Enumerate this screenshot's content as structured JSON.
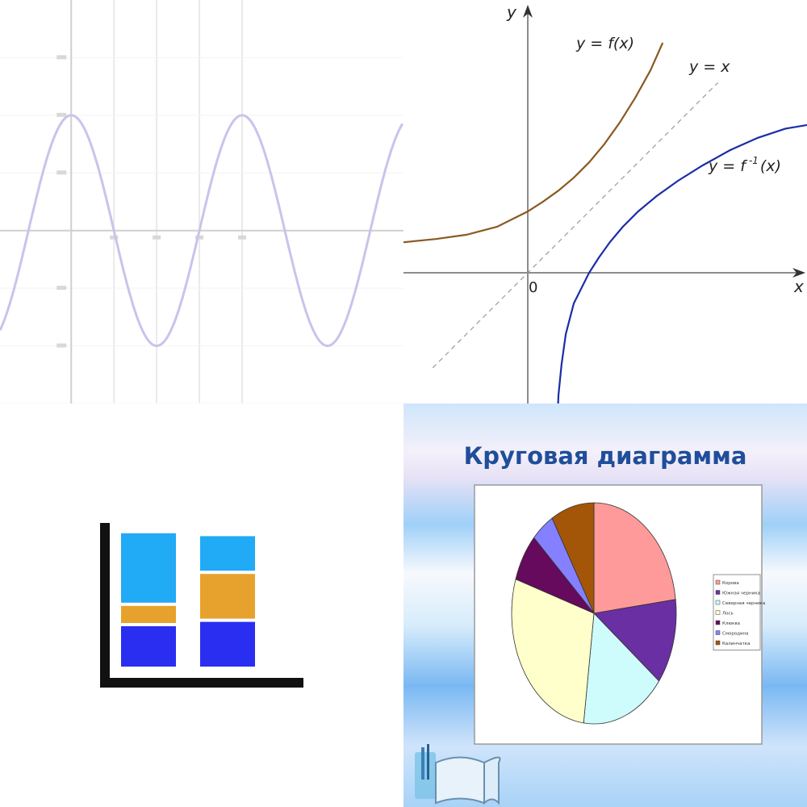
{
  "chart_data": [
    {
      "type": "line",
      "title": "",
      "xlabel": "",
      "ylabel": "",
      "x_ticks": [
        "",
        "",
        "",
        ""
      ],
      "y_ticks": [
        "",
        "",
        "",
        "",
        ""
      ],
      "series": [
        {
          "function": "cos",
          "x": [
            0,
            45,
            90,
            135,
            180,
            225,
            270,
            315,
            360,
            405,
            450
          ],
          "y": [
            1,
            0.707,
            0,
            -0.707,
            -1,
            -0.707,
            0,
            0.707,
            1,
            0.707,
            0
          ]
        }
      ],
      "xlim": [
        -150,
        700
      ],
      "ylim": [
        -1.5,
        2
      ],
      "grid": true,
      "colors": {
        "curve": "#c7c4ec",
        "grid": "#e4e4e4",
        "axis": "#cfcfcf"
      }
    },
    {
      "type": "line",
      "axis_x_label": "x",
      "axis_y_label": "y",
      "origin_label": "0",
      "labels": {
        "f": "y = f(x)",
        "identity": "y = x",
        "finv": "y = f",
        "finv_sup": "-1",
        "finv_tail": "(x)"
      },
      "series": [
        {
          "x": [
            -3.5,
            -3,
            -2.5,
            -2,
            -1.5,
            -1,
            -0.5,
            0,
            0.25,
            0.5,
            0.75,
            1.0,
            1.25,
            1.5,
            1.75,
            2.0,
            2.2
          ],
          "y": [
            0.46,
            0.47,
            0.48,
            0.5,
            0.55,
            0.62,
            0.75,
            1.0,
            1.16,
            1.34,
            1.55,
            1.8,
            2.1,
            2.45,
            2.85,
            3.3,
            3.75
          ]
        },
        {
          "x": [
            -4,
            4.5
          ],
          "y": [
            -4,
            4.5
          ]
        },
        {
          "x": [
            0.46,
            0.47,
            0.48,
            0.5,
            0.55,
            0.62,
            0.75,
            1.0,
            1.16,
            1.34,
            1.55,
            1.8,
            2.1,
            2.45,
            2.85,
            3.3,
            3.75,
            4.2,
            4.8
          ],
          "y": [
            -3.5,
            -3,
            -2.5,
            -2,
            -1.5,
            -1,
            -0.5,
            0,
            0.25,
            0.5,
            0.75,
            1.0,
            1.25,
            1.5,
            1.75,
            2.0,
            2.2,
            2.35,
            2.45
          ]
        }
      ],
      "colors": {
        "f": "#8a5a22",
        "finv": "#1b2ca8",
        "identity": "#9a9a9a",
        "axis": "#666666"
      }
    },
    {
      "type": "bar",
      "stacked": true,
      "categories": [
        "",
        ""
      ],
      "series": [
        {
          "values": [
            30,
            33
          ],
          "color": "#2a2ef0"
        },
        {
          "values": [
            14,
            33
          ],
          "color": "#e6a22c"
        },
        {
          "values": [
            50,
            26
          ],
          "color": "#21aaf5"
        }
      ],
      "ylim": [
        0,
        100
      ]
    },
    {
      "type": "pie",
      "title": "Круговая диаграмма",
      "slices": [
        {
          "label": "Корова",
          "value": 23,
          "color": "#ff9a9a"
        },
        {
          "label": "Южная черника",
          "value": 12.5,
          "color": "#6a2fa2"
        },
        {
          "label": "Северная черника",
          "value": 16.5,
          "color": "#cefbfb"
        },
        {
          "label": "Лось",
          "value": 28,
          "color": "#ffffcc"
        },
        {
          "label": "Клюква",
          "value": 7,
          "color": "#650a5c"
        },
        {
          "label": "Смородина",
          "value": 4.5,
          "color": "#8480ff"
        },
        {
          "label": "Калинчатка",
          "value": 8.5,
          "color": "#a35508"
        }
      ],
      "legend_position": "right",
      "title_color": "#1f4e9a"
    }
  ]
}
